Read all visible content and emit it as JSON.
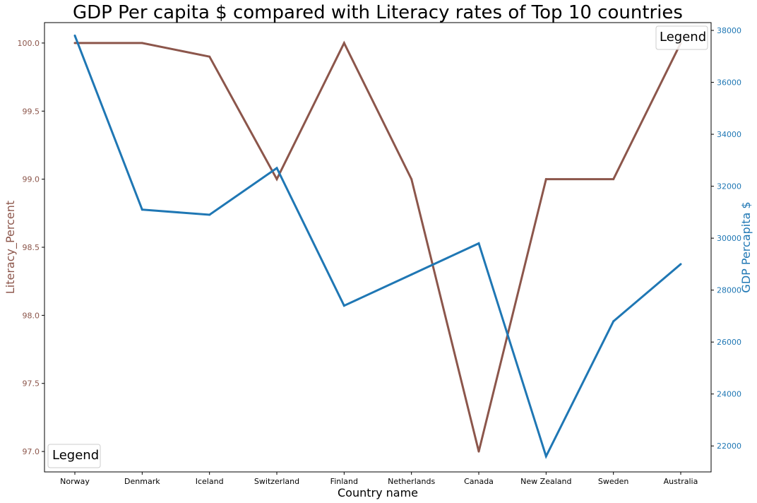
{
  "chart_data": {
    "type": "line",
    "title": "GDP Per capita $ compared with Literacy rates of Top 10 countries",
    "xlabel": "Country name",
    "categories": [
      "Norway",
      "Denmark",
      "Iceland",
      "Switzerland",
      "Finland",
      "Netherlands",
      "Canada",
      "New Zealand",
      "Sweden",
      "Australia"
    ],
    "left_axis": {
      "label": "Literacy_Percent",
      "color": "#8c564b",
      "ylim": [
        96.85,
        100.15
      ],
      "ticks": [
        "97.0",
        "97.5",
        "98.0",
        "98.5",
        "99.0",
        "99.5",
        "100.0"
      ]
    },
    "right_axis": {
      "label": "GDP Percapita $",
      "color": "#1f77b4",
      "ylim": [
        21000,
        38300
      ],
      "ticks": [
        "22000",
        "24000",
        "26000",
        "28000",
        "30000",
        "32000",
        "34000",
        "36000",
        "38000"
      ]
    },
    "series": [
      {
        "axis": "left",
        "color": "#8c564b",
        "values": [
          100.0,
          100.0,
          99.9,
          99.0,
          100.0,
          99.0,
          97.0,
          99.0,
          99.0,
          100.0
        ]
      },
      {
        "axis": "right",
        "color": "#1f77b4",
        "values": [
          37800,
          31100,
          30900,
          32700,
          27400,
          28600,
          29800,
          21600,
          26800,
          29000
        ]
      }
    ],
    "legends": [
      {
        "label": "Legend",
        "position": "top-right"
      },
      {
        "label": "Legend",
        "position": "bottom-left"
      }
    ],
    "grid": false
  }
}
